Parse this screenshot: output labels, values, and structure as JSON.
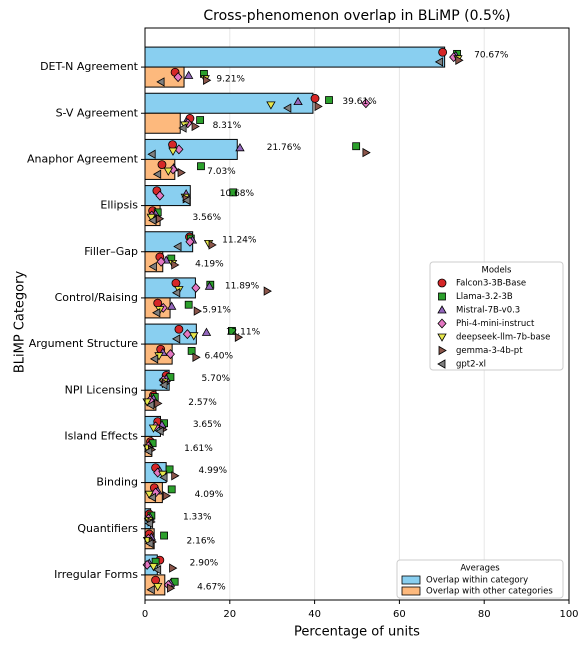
{
  "chart_data": {
    "type": "bar",
    "orientation": "horizontal",
    "title": "Cross-phenomenon overlap in BLiMP (0.5%)",
    "x_label": "Percentage of units",
    "y_label": "BLiMP Category",
    "xlim": [
      0,
      100
    ],
    "xticks": [
      0,
      20,
      40,
      60,
      80,
      100
    ],
    "grid": true,
    "categories": [
      "DET-N Agreement",
      "S-V Agreement",
      "Anaphor Agreement",
      "Ellipsis",
      "Filler–Gap",
      "Control/Raising",
      "Argument Structure",
      "NPI Licensing",
      "Island Effects",
      "Binding",
      "Quantifiers",
      "Irregular Forms"
    ],
    "legend_title": "Averages",
    "legend_position": "lower right",
    "series": [
      {
        "name": "Overlap within category",
        "color": "#89cff0",
        "values": [
          70.67,
          39.61,
          21.76,
          10.68,
          11.24,
          11.89,
          12.11,
          5.7,
          3.65,
          4.99,
          1.33,
          2.9
        ],
        "value_labels": [
          "70.67%",
          "39.61%",
          "21.76%",
          "10.68%",
          "11.24%",
          "11.89%",
          "12.11%",
          "5.70%",
          "3.65%",
          "4.99%",
          "1.33%",
          "2.90%"
        ]
      },
      {
        "name": "Overlap with other categories",
        "color": "#fdb97d",
        "values": [
          9.21,
          8.31,
          7.03,
          3.56,
          4.19,
          5.91,
          6.4,
          2.57,
          1.61,
          4.09,
          2.16,
          4.67
        ],
        "value_labels": [
          "9.21%",
          "8.31%",
          "7.03%",
          "3.56%",
          "4.19%",
          "5.91%",
          "6.40%",
          "2.57%",
          "1.61%",
          "4.09%",
          "2.16%",
          "4.67%"
        ]
      }
    ],
    "models_legend_title": "Models",
    "models_legend_position": "center right",
    "models": [
      {
        "name": "Falcon3-3B-Base",
        "color": "#d62728",
        "marker": "o",
        "within": [
          70.2,
          40.1,
          6.5,
          2.8,
          10.5,
          7.3,
          8.0,
          5.0,
          3.0,
          2.5,
          1.0,
          3.5
        ],
        "other": [
          7.1,
          10.6,
          4.0,
          1.8,
          3.5,
          3.0,
          3.7,
          2.0,
          1.3,
          2.2,
          1.0,
          2.5
        ]
      },
      {
        "name": "Llama-3.2-3B",
        "color": "#2ca02c",
        "marker": "s",
        "within": [
          73.6,
          43.4,
          49.8,
          20.8,
          10.8,
          15.4,
          20.5,
          6.0,
          4.5,
          5.8,
          1.5,
          2.5
        ],
        "other": [
          13.9,
          13.0,
          13.2,
          3.0,
          6.2,
          10.3,
          11.0,
          2.3,
          1.8,
          6.3,
          4.5,
          7.0
        ]
      },
      {
        "name": "Mistral-7B-v0.3",
        "color": "#9467bd",
        "marker": "^",
        "within": [
          73.3,
          36.1,
          22.4,
          9.7,
          11.2,
          15.2,
          14.5,
          5.0,
          4.0,
          3.5,
          1.2,
          1.0
        ],
        "other": [
          10.3,
          9.7,
          6.8,
          2.5,
          5.0,
          6.3,
          4.2,
          2.0,
          1.0,
          3.0,
          1.5,
          6.0
        ]
      },
      {
        "name": "Phi-4-mini-instruct",
        "color": "#e377c2",
        "marker": "D",
        "within": [
          72.8,
          52.1,
          8.0,
          3.5,
          10.6,
          12.0,
          10.0,
          4.3,
          2.5,
          3.0,
          0.8,
          0.5
        ],
        "other": [
          7.8,
          10.1,
          6.6,
          1.6,
          3.8,
          4.3,
          6.0,
          1.2,
          0.8,
          2.5,
          0.8,
          5.5
        ]
      },
      {
        "name": "deepseek-llm-7b-base",
        "color": "#e6e64c",
        "marker": "v",
        "within": [
          73.8,
          29.7,
          6.6,
          9.5,
          15.0,
          8.0,
          11.5,
          4.5,
          2.0,
          4.2,
          0.9,
          2.0
        ],
        "other": [
          14.2,
          9.4,
          5.5,
          1.5,
          6.5,
          3.5,
          3.3,
          0.5,
          0.6,
          1.0,
          0.6,
          3.0
        ]
      },
      {
        "name": "gemma-3-4b-pt",
        "color": "#8c564b",
        "marker": ">",
        "within": [
          74.0,
          40.8,
          52.1,
          9.7,
          15.8,
          28.8,
          22.0,
          4.8,
          4.2,
          7.0,
          1.4,
          6.5
        ],
        "other": [
          14.5,
          11.8,
          8.5,
          3.4,
          7.0,
          12.3,
          12.0,
          3.0,
          1.5,
          5.0,
          1.7,
          6.0
        ]
      },
      {
        "name": "gpt2-xl",
        "color": "#7f7f7f",
        "marker": "<",
        "within": [
          69.5,
          33.7,
          1.7,
          9.9,
          7.8,
          7.5,
          7.5,
          4.5,
          3.6,
          4.5,
          1.1,
          3.0
        ],
        "other": [
          3.8,
          9.0,
          3.0,
          1.9,
          2.0,
          2.8,
          2.3,
          1.4,
          0.9,
          1.8,
          1.2,
          1.5
        ]
      }
    ]
  }
}
